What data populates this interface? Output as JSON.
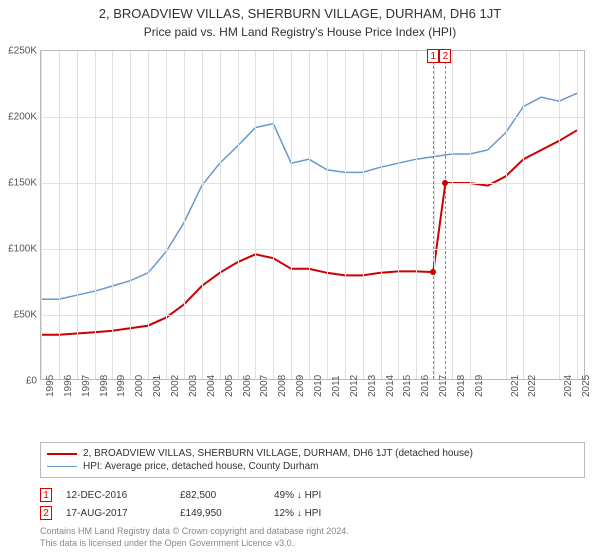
{
  "title": "2, BROADVIEW VILLAS, SHERBURN VILLAGE, DURHAM, DH6 1JT",
  "subtitle": "Price paid vs. HM Land Registry's House Price Index (HPI)",
  "chart": {
    "type": "line",
    "xlim": [
      1995,
      2025.5
    ],
    "ylim": [
      0,
      250000
    ],
    "ytick_step": 50000,
    "yticks": [
      "£0",
      "£50K",
      "£100K",
      "£150K",
      "£200K",
      "£250K"
    ],
    "xticks": [
      1995,
      1996,
      1997,
      1998,
      1999,
      2000,
      2001,
      2002,
      2003,
      2004,
      2005,
      2006,
      2007,
      2008,
      2009,
      2010,
      2011,
      2012,
      2013,
      2014,
      2015,
      2016,
      2017,
      2018,
      2019,
      2021,
      2022,
      2024,
      2025
    ],
    "background_color": "#ffffff",
    "grid_color": "#e0e0e0",
    "border_color": "#bbbbbb",
    "series": [
      {
        "name": "property",
        "label": "2, BROADVIEW VILLAS, SHERBURN VILLAGE, DURHAM, DH6 1JT (detached house)",
        "color": "#cc0000",
        "line_width": 2,
        "data": [
          [
            1995,
            35000
          ],
          [
            1996,
            35000
          ],
          [
            1997,
            36000
          ],
          [
            1998,
            37000
          ],
          [
            1999,
            38000
          ],
          [
            2000,
            40000
          ],
          [
            2001,
            42000
          ],
          [
            2002,
            48000
          ],
          [
            2003,
            58000
          ],
          [
            2004,
            72000
          ],
          [
            2005,
            82000
          ],
          [
            2006,
            90000
          ],
          [
            2007,
            96000
          ],
          [
            2008,
            93000
          ],
          [
            2009,
            85000
          ],
          [
            2010,
            85000
          ],
          [
            2011,
            82000
          ],
          [
            2012,
            80000
          ],
          [
            2013,
            80000
          ],
          [
            2014,
            82000
          ],
          [
            2015,
            83000
          ],
          [
            2016,
            83000
          ],
          [
            2016.95,
            82500
          ],
          [
            2017.63,
            149950
          ],
          [
            2018,
            150000
          ],
          [
            2019,
            150000
          ],
          [
            2020,
            148000
          ],
          [
            2021,
            155000
          ],
          [
            2022,
            168000
          ],
          [
            2023,
            175000
          ],
          [
            2024,
            182000
          ],
          [
            2025,
            190000
          ]
        ]
      },
      {
        "name": "hpi",
        "label": "HPI: Average price, detached house, County Durham",
        "color": "#6699cc",
        "line_width": 1.5,
        "data": [
          [
            1995,
            62000
          ],
          [
            1996,
            62000
          ],
          [
            1997,
            65000
          ],
          [
            1998,
            68000
          ],
          [
            1999,
            72000
          ],
          [
            2000,
            76000
          ],
          [
            2001,
            82000
          ],
          [
            2002,
            98000
          ],
          [
            2003,
            120000
          ],
          [
            2004,
            148000
          ],
          [
            2005,
            165000
          ],
          [
            2006,
            178000
          ],
          [
            2007,
            192000
          ],
          [
            2008,
            195000
          ],
          [
            2009,
            165000
          ],
          [
            2010,
            168000
          ],
          [
            2011,
            160000
          ],
          [
            2012,
            158000
          ],
          [
            2013,
            158000
          ],
          [
            2014,
            162000
          ],
          [
            2015,
            165000
          ],
          [
            2016,
            168000
          ],
          [
            2017,
            170000
          ],
          [
            2018,
            172000
          ],
          [
            2019,
            172000
          ],
          [
            2020,
            175000
          ],
          [
            2021,
            188000
          ],
          [
            2022,
            208000
          ],
          [
            2023,
            215000
          ],
          [
            2024,
            212000
          ],
          [
            2025,
            218000
          ]
        ]
      }
    ],
    "markers": [
      {
        "id": "1",
        "x": 2016.95,
        "y": 82500,
        "color": "#cc0000"
      },
      {
        "id": "2",
        "x": 2017.63,
        "y": 149950,
        "color": "#cc0000"
      }
    ]
  },
  "legend": {
    "items": [
      {
        "color": "#cc0000",
        "width": 2,
        "label_path": "chart.series.0.label"
      },
      {
        "color": "#6699cc",
        "width": 1.5,
        "label_path": "chart.series.1.label"
      }
    ]
  },
  "events": [
    {
      "id": "1",
      "date": "12-DEC-2016",
      "price": "£82,500",
      "hpi": "49% ↓ HPI"
    },
    {
      "id": "2",
      "date": "17-AUG-2017",
      "price": "£149,950",
      "hpi": "12% ↓ HPI"
    }
  ],
  "footer": {
    "line1": "Contains HM Land Registry data © Crown copyright and database right 2024.",
    "line2": "This data is licensed under the Open Government Licence v3.0."
  }
}
